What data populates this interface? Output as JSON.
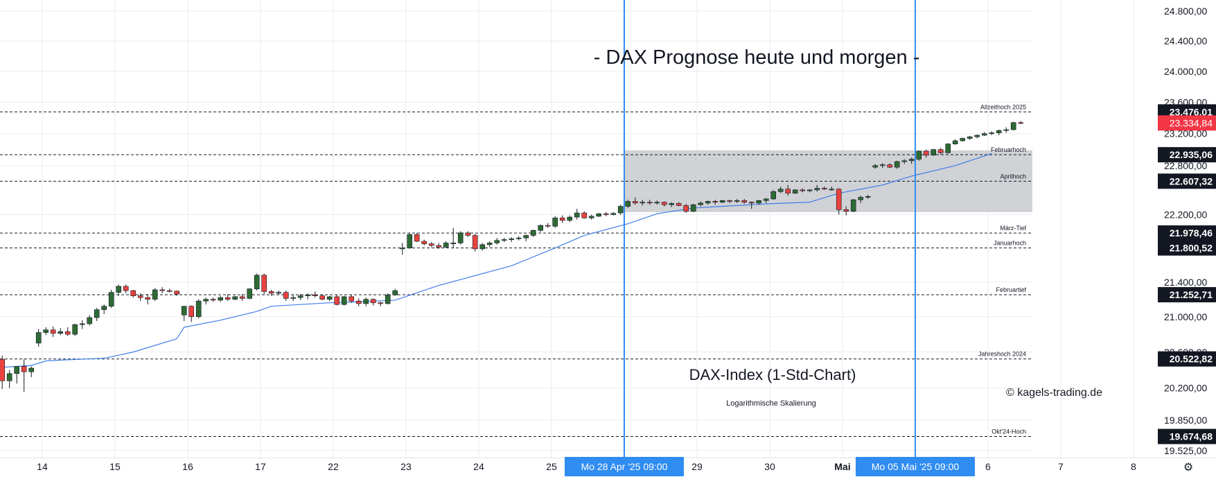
{
  "chart_data": {
    "type": "candlestick",
    "title": "- DAX Prognose heute und morgen -",
    "subtitle": "DAX-Index (1-Std-Chart)",
    "scale_note": "Logarithmische Skalierung",
    "watermark": "© kagels-trading.de",
    "y_scale": "log",
    "ylim": [
      19450,
      24950
    ],
    "yticks": [
      {
        "value": 24800,
        "label": "24.800,00"
      },
      {
        "value": 24400,
        "label": "24.400,00"
      },
      {
        "value": 24000,
        "label": "24.000,00"
      },
      {
        "value": 23600,
        "label": "23.600,00"
      },
      {
        "value": 23200,
        "label": "23.200,00"
      },
      {
        "value": 22800,
        "label": "22.800,00"
      },
      {
        "value": 22200,
        "label": "22.200,00"
      },
      {
        "value": 21400,
        "label": "21.400,00"
      },
      {
        "value": 21000,
        "label": "21.000,00"
      },
      {
        "value": 20600,
        "label": "20.600,00"
      },
      {
        "value": 20200,
        "label": "20.200,00"
      },
      {
        "value": 19850,
        "label": "19.850,00"
      },
      {
        "value": 19525,
        "label": "19.525,00"
      }
    ],
    "xticks": [
      {
        "label": "14",
        "index": 5.5
      },
      {
        "label": "15",
        "index": 15.5
      },
      {
        "label": "16",
        "index": 25.5
      },
      {
        "label": "17",
        "index": 35.5
      },
      {
        "label": "22",
        "index": 45.5
      },
      {
        "label": "23",
        "index": 55.5
      },
      {
        "label": "24",
        "index": 65.5
      },
      {
        "label": "25",
        "index": 75.5
      },
      {
        "label": "29",
        "index": 95.5
      },
      {
        "label": "30",
        "index": 105.5
      },
      {
        "label": "Mai",
        "index": 115.5,
        "bold": true
      },
      {
        "label": "6",
        "index": 135.5
      },
      {
        "label": "7",
        "index": 145.5
      },
      {
        "label": "8",
        "index": 155.5
      }
    ],
    "date_markers": [
      {
        "index": 85.5,
        "label": "Mo 28 Apr '25   09:00"
      },
      {
        "index": 125.5,
        "label": "Mo 05 Mai '25   09:00"
      }
    ],
    "levels": [
      {
        "name": "Allzeithoch 2025",
        "value": 23476.01,
        "label": "23.476,01",
        "color": "#131722"
      },
      {
        "name": "Februarhoch",
        "value": 22935.06,
        "label": "22.935,06",
        "color": "#131722"
      },
      {
        "name": "Aprilhoch",
        "value": 22607.32,
        "label": "22.607,32",
        "color": "#131722"
      },
      {
        "name": "März-Tief",
        "value": 21978.46,
        "label": "21.978,46",
        "color": "#131722"
      },
      {
        "name": "Januarhoch",
        "value": 21800.52,
        "label": "21.800,52",
        "color": "#131722"
      },
      {
        "name": "Februartief",
        "value": 21252.71,
        "label": "21.252,71",
        "color": "#131722"
      },
      {
        "name": "Jahreshoch 2024",
        "value": 20522.82,
        "label": "20.522,82",
        "color": "#131722"
      },
      {
        "name": "Okt'24-Hoch",
        "value": 19674.68,
        "label": "19.674,68",
        "color": "#131722"
      }
    ],
    "last_price": {
      "value": 23334.84,
      "label": "23.334,84",
      "color": "#f23645"
    },
    "zone": {
      "start_index": 85.5,
      "low": 22230,
      "high": 22990,
      "color": "#cfd0d4"
    },
    "colors": {
      "up": "#2e6b34",
      "down": "#e8433f",
      "wick": "#131722",
      "ma": "#3f7ee8",
      "marker": "#2f8cf0",
      "grid": "#e9ebef"
    },
    "candles": [
      [
        20520,
        20560,
        20190,
        20280
      ],
      [
        20280,
        20400,
        20200,
        20360
      ],
      [
        20360,
        20420,
        20250,
        20440
      ],
      [
        20440,
        20520,
        20160,
        20380
      ],
      [
        20380,
        20440,
        20320,
        20420
      ],
      [
        20700,
        20860,
        20660,
        20820
      ],
      [
        20820,
        20880,
        20790,
        20850
      ],
      [
        20850,
        20890,
        20770,
        20810
      ],
      [
        20810,
        20870,
        20790,
        20830
      ],
      [
        20830,
        20880,
        20780,
        20800
      ],
      [
        20800,
        20920,
        20780,
        20910
      ],
      [
        20910,
        20960,
        20860,
        20920
      ],
      [
        20920,
        21020,
        20900,
        20990
      ],
      [
        20990,
        21100,
        20950,
        21080
      ],
      [
        21080,
        21140,
        21030,
        21120
      ],
      [
        21120,
        21310,
        21100,
        21280
      ],
      [
        21280,
        21370,
        21240,
        21350
      ],
      [
        21350,
        21370,
        21270,
        21300
      ],
      [
        21300,
        21310,
        21220,
        21240
      ],
      [
        21240,
        21270,
        21180,
        21220
      ],
      [
        21220,
        21260,
        21140,
        21200
      ],
      [
        21200,
        21330,
        21180,
        21310
      ],
      [
        21310,
        21340,
        21270,
        21300
      ],
      [
        21300,
        21320,
        21280,
        21295
      ],
      [
        21295,
        21300,
        21240,
        21260
      ],
      [
        21020,
        21120,
        20950,
        21120
      ],
      [
        21120,
        21130,
        20940,
        21000
      ],
      [
        21000,
        21200,
        20980,
        21180
      ],
      [
        21180,
        21220,
        21140,
        21200
      ],
      [
        21200,
        21220,
        21170,
        21190
      ],
      [
        21190,
        21240,
        21170,
        21220
      ],
      [
        21220,
        21260,
        21180,
        21200
      ],
      [
        21200,
        21240,
        21190,
        21230
      ],
      [
        21230,
        21260,
        21180,
        21210
      ],
      [
        21210,
        21330,
        21200,
        21320
      ],
      [
        21320,
        21500,
        21300,
        21480
      ],
      [
        21480,
        21500,
        21260,
        21290
      ],
      [
        21290,
        21310,
        21240,
        21270
      ],
      [
        21270,
        21300,
        21250,
        21280
      ],
      [
        21280,
        21300,
        21180,
        21210
      ],
      [
        21210,
        21250,
        21180,
        21220
      ],
      [
        21220,
        21260,
        21190,
        21240
      ],
      [
        21240,
        21270,
        21200,
        21250
      ],
      [
        21250,
        21290,
        21220,
        21240
      ],
      [
        21240,
        21260,
        21190,
        21200
      ],
      [
        21200,
        21240,
        21180,
        21230
      ],
      [
        21230,
        21250,
        21130,
        21140
      ],
      [
        21140,
        21240,
        21130,
        21230
      ],
      [
        21230,
        21250,
        21160,
        21180
      ],
      [
        21180,
        21210,
        21120,
        21150
      ],
      [
        21150,
        21220,
        21120,
        21200
      ],
      [
        21200,
        21210,
        21130,
        21160
      ],
      [
        21160,
        21170,
        21120,
        21150
      ],
      [
        21150,
        21270,
        21140,
        21250
      ],
      [
        21250,
        21320,
        21240,
        21300
      ],
      [
        21790,
        21860,
        21720,
        21800
      ],
      [
        21800,
        21980,
        21790,
        21960
      ],
      [
        21960,
        21980,
        21870,
        21880
      ],
      [
        21880,
        21900,
        21830,
        21850
      ],
      [
        21850,
        21870,
        21810,
        21830
      ],
      [
        21830,
        21860,
        21790,
        21810
      ],
      [
        21810,
        21880,
        21800,
        21860
      ],
      [
        21860,
        22040,
        21800,
        21860
      ],
      [
        21860,
        22000,
        21840,
        21980
      ],
      [
        21980,
        22000,
        21930,
        21950
      ],
      [
        21950,
        21970,
        21760,
        21790
      ],
      [
        21790,
        21860,
        21770,
        21840
      ],
      [
        21840,
        21880,
        21810,
        21860
      ],
      [
        21860,
        21920,
        21840,
        21890
      ],
      [
        21890,
        21920,
        21870,
        21900
      ],
      [
        21900,
        21930,
        21870,
        21910
      ],
      [
        21910,
        21940,
        21890,
        21920
      ],
      [
        21920,
        21960,
        21880,
        21950
      ],
      [
        21950,
        22020,
        21930,
        22010
      ],
      [
        22010,
        22080,
        21990,
        22070
      ],
      [
        22070,
        22100,
        22040,
        22060
      ],
      [
        22060,
        22180,
        22040,
        22160
      ],
      [
        22160,
        22190,
        22100,
        22130
      ],
      [
        22130,
        22190,
        22110,
        22170
      ],
      [
        22170,
        22270,
        22140,
        22220
      ],
      [
        22220,
        22240,
        22150,
        22160
      ],
      [
        22160,
        22200,
        22140,
        22180
      ],
      [
        22180,
        22220,
        22170,
        22210
      ],
      [
        22210,
        22230,
        22180,
        22200
      ],
      [
        22200,
        22230,
        22190,
        22215
      ],
      [
        22220,
        22320,
        22200,
        22300
      ],
      [
        22300,
        22380,
        22280,
        22360
      ],
      [
        22360,
        22410,
        22320,
        22340
      ],
      [
        22340,
        22380,
        22310,
        22350
      ],
      [
        22350,
        22380,
        22320,
        22340
      ],
      [
        22340,
        22370,
        22320,
        22350
      ],
      [
        22350,
        22360,
        22300,
        22320
      ],
      [
        22320,
        22350,
        22290,
        22335
      ],
      [
        22335,
        22350,
        22300,
        22310
      ],
      [
        22310,
        22330,
        22220,
        22240
      ],
      [
        22240,
        22330,
        22230,
        22320
      ],
      [
        22320,
        22360,
        22300,
        22340
      ],
      [
        22340,
        22370,
        22320,
        22360
      ],
      [
        22360,
        22380,
        22320,
        22350
      ],
      [
        22350,
        22380,
        22340,
        22370
      ],
      [
        22370,
        22380,
        22340,
        22360
      ],
      [
        22360,
        22390,
        22340,
        22370
      ],
      [
        22370,
        22390,
        22330,
        22350
      ],
      [
        22350,
        22360,
        22270,
        22340
      ],
      [
        22340,
        22380,
        22320,
        22370
      ],
      [
        22370,
        22400,
        22340,
        22390
      ],
      [
        22390,
        22500,
        22380,
        22480
      ],
      [
        22480,
        22540,
        22460,
        22510
      ],
      [
        22510,
        22560,
        22430,
        22460
      ],
      [
        22460,
        22510,
        22450,
        22500
      ],
      [
        22500,
        22520,
        22470,
        22490
      ],
      [
        22490,
        22510,
        22470,
        22500
      ],
      [
        22500,
        22560,
        22480,
        22520
      ],
      [
        22520,
        22540,
        22500,
        22510
      ],
      [
        22510,
        22540,
        22490,
        22510
      ],
      [
        22510,
        22520,
        22200,
        22260
      ],
      [
        22260,
        22300,
        22190,
        22240
      ],
      [
        22240,
        22390,
        22230,
        22380
      ],
      [
        22380,
        22430,
        22340,
        22410
      ],
      [
        22410,
        22440,
        22390,
        22420
      ],
      [
        22780,
        22820,
        22760,
        22800
      ],
      [
        22800,
        22830,
        22770,
        22810
      ],
      [
        22810,
        22830,
        22770,
        22780
      ],
      [
        22780,
        22860,
        22760,
        22850
      ],
      [
        22850,
        22880,
        22820,
        22860
      ],
      [
        22860,
        22900,
        22820,
        22880
      ],
      [
        22880,
        22990,
        22860,
        22980
      ],
      [
        22980,
        23000,
        22900,
        22930
      ],
      [
        22930,
        23010,
        22920,
        23000
      ],
      [
        23000,
        23020,
        22940,
        22960
      ],
      [
        22960,
        23080,
        22950,
        23070
      ],
      [
        23070,
        23130,
        23060,
        23110
      ],
      [
        23110,
        23150,
        23100,
        23140
      ],
      [
        23140,
        23170,
        23120,
        23160
      ],
      [
        23160,
        23190,
        23140,
        23180
      ],
      [
        23180,
        23220,
        23170,
        23200
      ],
      [
        23200,
        23230,
        23180,
        23210
      ],
      [
        23210,
        23250,
        23180,
        23240
      ],
      [
        23240,
        23280,
        23210,
        23250
      ],
      [
        23250,
        23350,
        23240,
        23340
      ],
      [
        23340,
        23360,
        23320,
        23335
      ]
    ],
    "ma": [
      [
        0,
        20430
      ],
      [
        4,
        20450
      ],
      [
        6,
        20500
      ],
      [
        8,
        20510
      ],
      [
        14,
        20530
      ],
      [
        18,
        20600
      ],
      [
        24,
        20750
      ],
      [
        25,
        20880
      ],
      [
        30,
        20960
      ],
      [
        35,
        21060
      ],
      [
        37,
        21120
      ],
      [
        45,
        21160
      ],
      [
        49,
        21170
      ],
      [
        54,
        21190
      ],
      [
        60,
        21360
      ],
      [
        70,
        21590
      ],
      [
        76,
        21800
      ],
      [
        80,
        21950
      ],
      [
        86,
        22090
      ],
      [
        90,
        22210
      ],
      [
        95,
        22280
      ],
      [
        105,
        22330
      ],
      [
        111,
        22350
      ],
      [
        115,
        22460
      ],
      [
        121,
        22560
      ],
      [
        125,
        22670
      ],
      [
        131,
        22800
      ],
      [
        136,
        22950
      ]
    ],
    "layout": {
      "plot_left": 0,
      "plot_right": 1490,
      "plot_top": 0,
      "plot_bottom": 660,
      "first_x": 3.2,
      "dx": 10.5
    }
  }
}
